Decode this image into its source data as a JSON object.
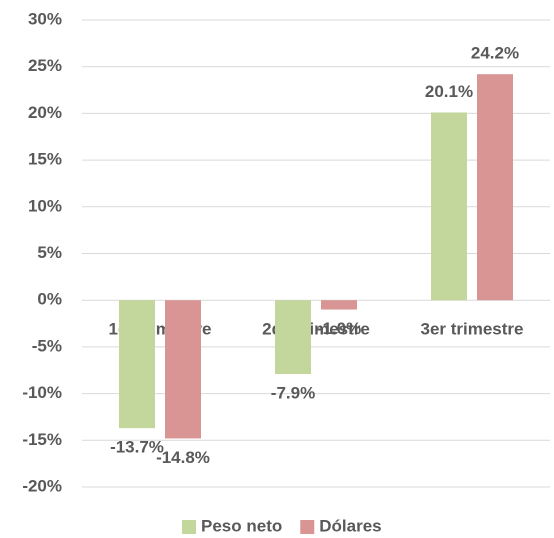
{
  "chart_data": {
    "type": "bar",
    "categories": [
      "1er trimestre",
      "2do trimestre",
      "3er trimestre"
    ],
    "series": [
      {
        "name": "Peso neto",
        "color": "#c3d69b",
        "values": [
          -13.7,
          -7.9,
          20.1
        ],
        "value_labels": [
          "-13.7%",
          "-7.9%",
          "20.1%"
        ]
      },
      {
        "name": "Dólares",
        "color": "#d99594",
        "values": [
          -14.8,
          -1.0,
          24.2
        ],
        "value_labels": [
          "-14.8%",
          "-1.0%",
          "24.2%"
        ]
      }
    ],
    "ylim": [
      -20,
      30
    ],
    "yticks": [
      {
        "value": -20,
        "label": "-20%"
      },
      {
        "value": -15,
        "label": "-15%"
      },
      {
        "value": -10,
        "label": "-10%"
      },
      {
        "value": -5,
        "label": "-5%"
      },
      {
        "value": 0,
        "label": "0%"
      },
      {
        "value": 5,
        "label": "5%"
      },
      {
        "value": 10,
        "label": "10%"
      },
      {
        "value": 15,
        "label": "15%"
      },
      {
        "value": 20,
        "label": "20%"
      },
      {
        "value": 25,
        "label": "25%"
      },
      {
        "value": 30,
        "label": "30%"
      }
    ],
    "grid": true,
    "legend": "bottom"
  }
}
